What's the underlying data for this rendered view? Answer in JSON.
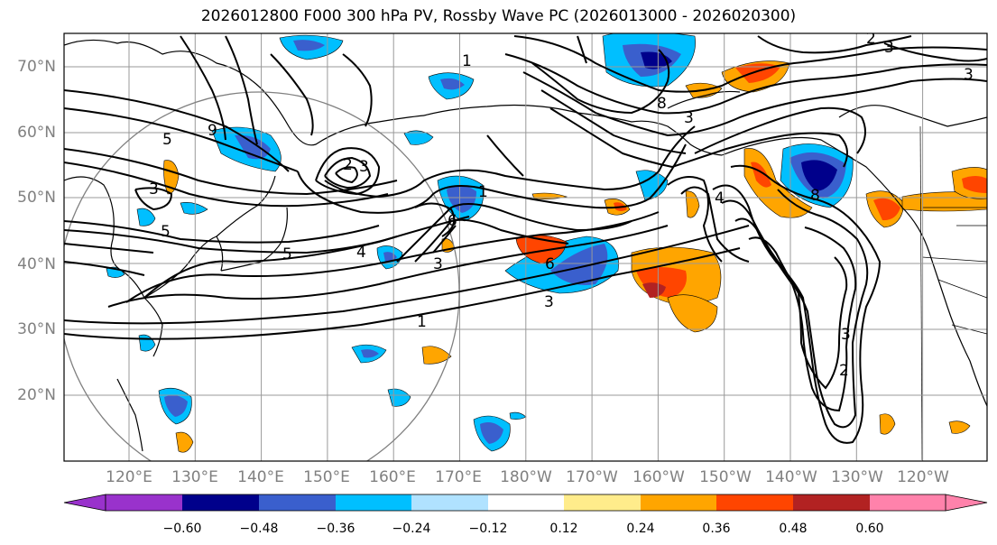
{
  "title": "2026012800 F000 300 hPa PV, Rossby Wave PC (2026013000 - 2026020300)",
  "map": {
    "lat_labels": [
      "70°N",
      "60°N",
      "50°N",
      "40°N",
      "30°N",
      "20°N"
    ],
    "lon_labels": [
      "120°E",
      "130°E",
      "140°E",
      "150°E",
      "160°E",
      "170°E",
      "180°W",
      "170°W",
      "160°W",
      "150°W",
      "140°W",
      "130°W",
      "120°W"
    ],
    "contour_labels": [
      "1",
      "2",
      "3",
      "5",
      "6",
      "8",
      "9",
      "4"
    ],
    "colors": {
      "label_gray": "#808080",
      "contour": "#000000",
      "grid": "#999999"
    }
  },
  "colorbar": {
    "colors": [
      "#9932cc",
      "#00008b",
      "#3a5fcd",
      "#00bfff",
      "#b0e2ff",
      "#ffffff",
      "#ffec8b",
      "#ffa500",
      "#ff4500",
      "#b22222",
      "#ff82ab"
    ],
    "tick_labels": [
      "−0.60",
      "−0.48",
      "−0.36",
      "−0.24",
      "−0.12",
      "0.12",
      "0.24",
      "0.36",
      "0.48",
      "0.60"
    ]
  }
}
